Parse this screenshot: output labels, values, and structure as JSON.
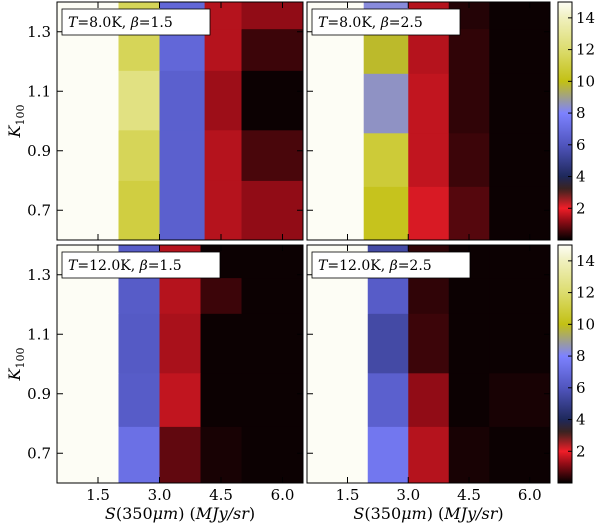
{
  "chart_data": {
    "type": "heatmap",
    "xlabel": "S(350μm) (MJy/sr)",
    "ylabel": "K100",
    "x_ticks": [
      1.5,
      3.0,
      4.5,
      6.0
    ],
    "x_tick_labels": [
      "1.5",
      "3.0",
      "4.5",
      "6.0"
    ],
    "y_ticks": [
      0.7,
      0.9,
      1.1,
      1.3
    ],
    "y_tick_labels": [
      "0.7",
      "0.9",
      "1.1",
      "1.3"
    ],
    "xlim": [
      0.5,
      6.5
    ],
    "ylim": [
      0.6,
      1.4
    ],
    "colorbar": {
      "range": [
        0,
        15
      ],
      "ticks": [
        2,
        4,
        6,
        8,
        10,
        12,
        14
      ],
      "tick_labels": [
        "2",
        "4",
        "6",
        "8",
        "10",
        "12",
        "14"
      ]
    },
    "panels": [
      {
        "title_T": "T",
        "title_mid": "=8.0K, ",
        "title_beta": "β",
        "title_end": "=1.5",
        "x_edges": [
          0.5,
          2.0,
          3.0,
          4.1,
          5.0,
          6.5
        ],
        "y_edges": [
          0.6,
          0.8,
          0.97,
          1.17,
          1.31,
          1.4
        ],
        "z": [
          [
            15,
            11,
            6.5,
            1.5,
            1.2
          ],
          [
            15,
            11.5,
            6.5,
            1.5,
            0.6
          ],
          [
            15,
            12.5,
            6.5,
            1.3,
            0.1
          ],
          [
            15,
            11.5,
            6.8,
            1.5,
            0.5
          ],
          [
            15,
            11.5,
            6.8,
            1.5,
            1.2
          ]
        ]
      },
      {
        "title_T": "T",
        "title_mid": "=8.0K, ",
        "title_beta": "β",
        "title_end": "=2.5",
        "x_edges": [
          0.5,
          1.9,
          3.0,
          4.0,
          5.0,
          6.5
        ],
        "y_edges": [
          0.6,
          0.78,
          0.96,
          1.16,
          1.31,
          1.4
        ],
        "z": [
          [
            15,
            10.2,
            1.8,
            0.7,
            0.1
          ],
          [
            15,
            10.8,
            1.6,
            0.5,
            0.1
          ],
          [
            15,
            8.5,
            1.6,
            0.4,
            0.1
          ],
          [
            15,
            9.8,
            1.5,
            0.4,
            0.1
          ],
          [
            15,
            8.3,
            1.5,
            0.3,
            0.1
          ]
        ]
      },
      {
        "title_T": "T",
        "title_mid": "=12.0K, ",
        "title_beta": "β",
        "title_end": "=1.5",
        "x_edges": [
          0.5,
          2.0,
          3.0,
          4.0,
          5.0,
          6.5
        ],
        "y_edges": [
          0.6,
          0.79,
          0.97,
          1.17,
          1.29,
          1.4
        ],
        "z": [
          [
            15,
            7.2,
            0.8,
            0.2,
            0.1
          ],
          [
            15,
            6.3,
            1.6,
            0.1,
            0.1
          ],
          [
            15,
            6.2,
            1.4,
            0.1,
            0.1
          ],
          [
            15,
            6.3,
            1.5,
            0.5,
            0.1
          ],
          [
            15,
            6.3,
            1.5,
            0.1,
            0.1
          ]
        ]
      },
      {
        "title_T": "T",
        "title_mid": "=12.0K, ",
        "title_beta": "β",
        "title_end": "=2.5",
        "x_edges": [
          0.5,
          2.0,
          3.0,
          4.0,
          5.0,
          6.5
        ],
        "y_edges": [
          0.6,
          0.79,
          0.97,
          1.17,
          1.29,
          1.4
        ],
        "z": [
          [
            15,
            7.5,
            1.5,
            0.2,
            0.1
          ],
          [
            15,
            6.5,
            1.2,
            0.1,
            0.2
          ],
          [
            15,
            5.5,
            0.5,
            0.1,
            0.1
          ],
          [
            15,
            6.3,
            0.4,
            0.1,
            0.1
          ],
          [
            15,
            5.5,
            0.4,
            0.1,
            0.1
          ]
        ]
      }
    ]
  }
}
